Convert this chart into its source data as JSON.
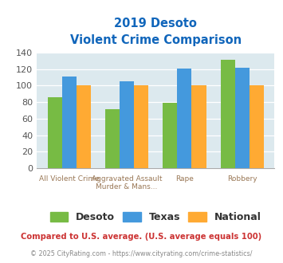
{
  "title_line1": "2019 Desoto",
  "title_line2": "Violent Crime Comparison",
  "cat_labels_top": [
    "",
    "Aggravated Assault",
    "",
    ""
  ],
  "cat_labels_bot": [
    "All Violent Crime",
    "Murder & Mans...",
    "Rape",
    "Robbery"
  ],
  "desoto": [
    86,
    72,
    79,
    131
  ],
  "texas": [
    111,
    105,
    121,
    122
  ],
  "national": [
    100,
    100,
    100,
    100
  ],
  "desoto_color": "#77bb44",
  "texas_color": "#4499dd",
  "national_color": "#ffaa33",
  "ylim": [
    0,
    140
  ],
  "yticks": [
    0,
    20,
    40,
    60,
    80,
    100,
    120,
    140
  ],
  "plot_bg": "#dce9ee",
  "title_color": "#1166bb",
  "footer_note": "Compared to U.S. average. (U.S. average equals 100)",
  "footer_note_color": "#cc3333",
  "copyright": "© 2025 CityRating.com - https://www.cityrating.com/crime-statistics/",
  "copyright_color": "#888888",
  "legend_labels": [
    "Desoto",
    "Texas",
    "National"
  ],
  "bar_width": 0.25
}
